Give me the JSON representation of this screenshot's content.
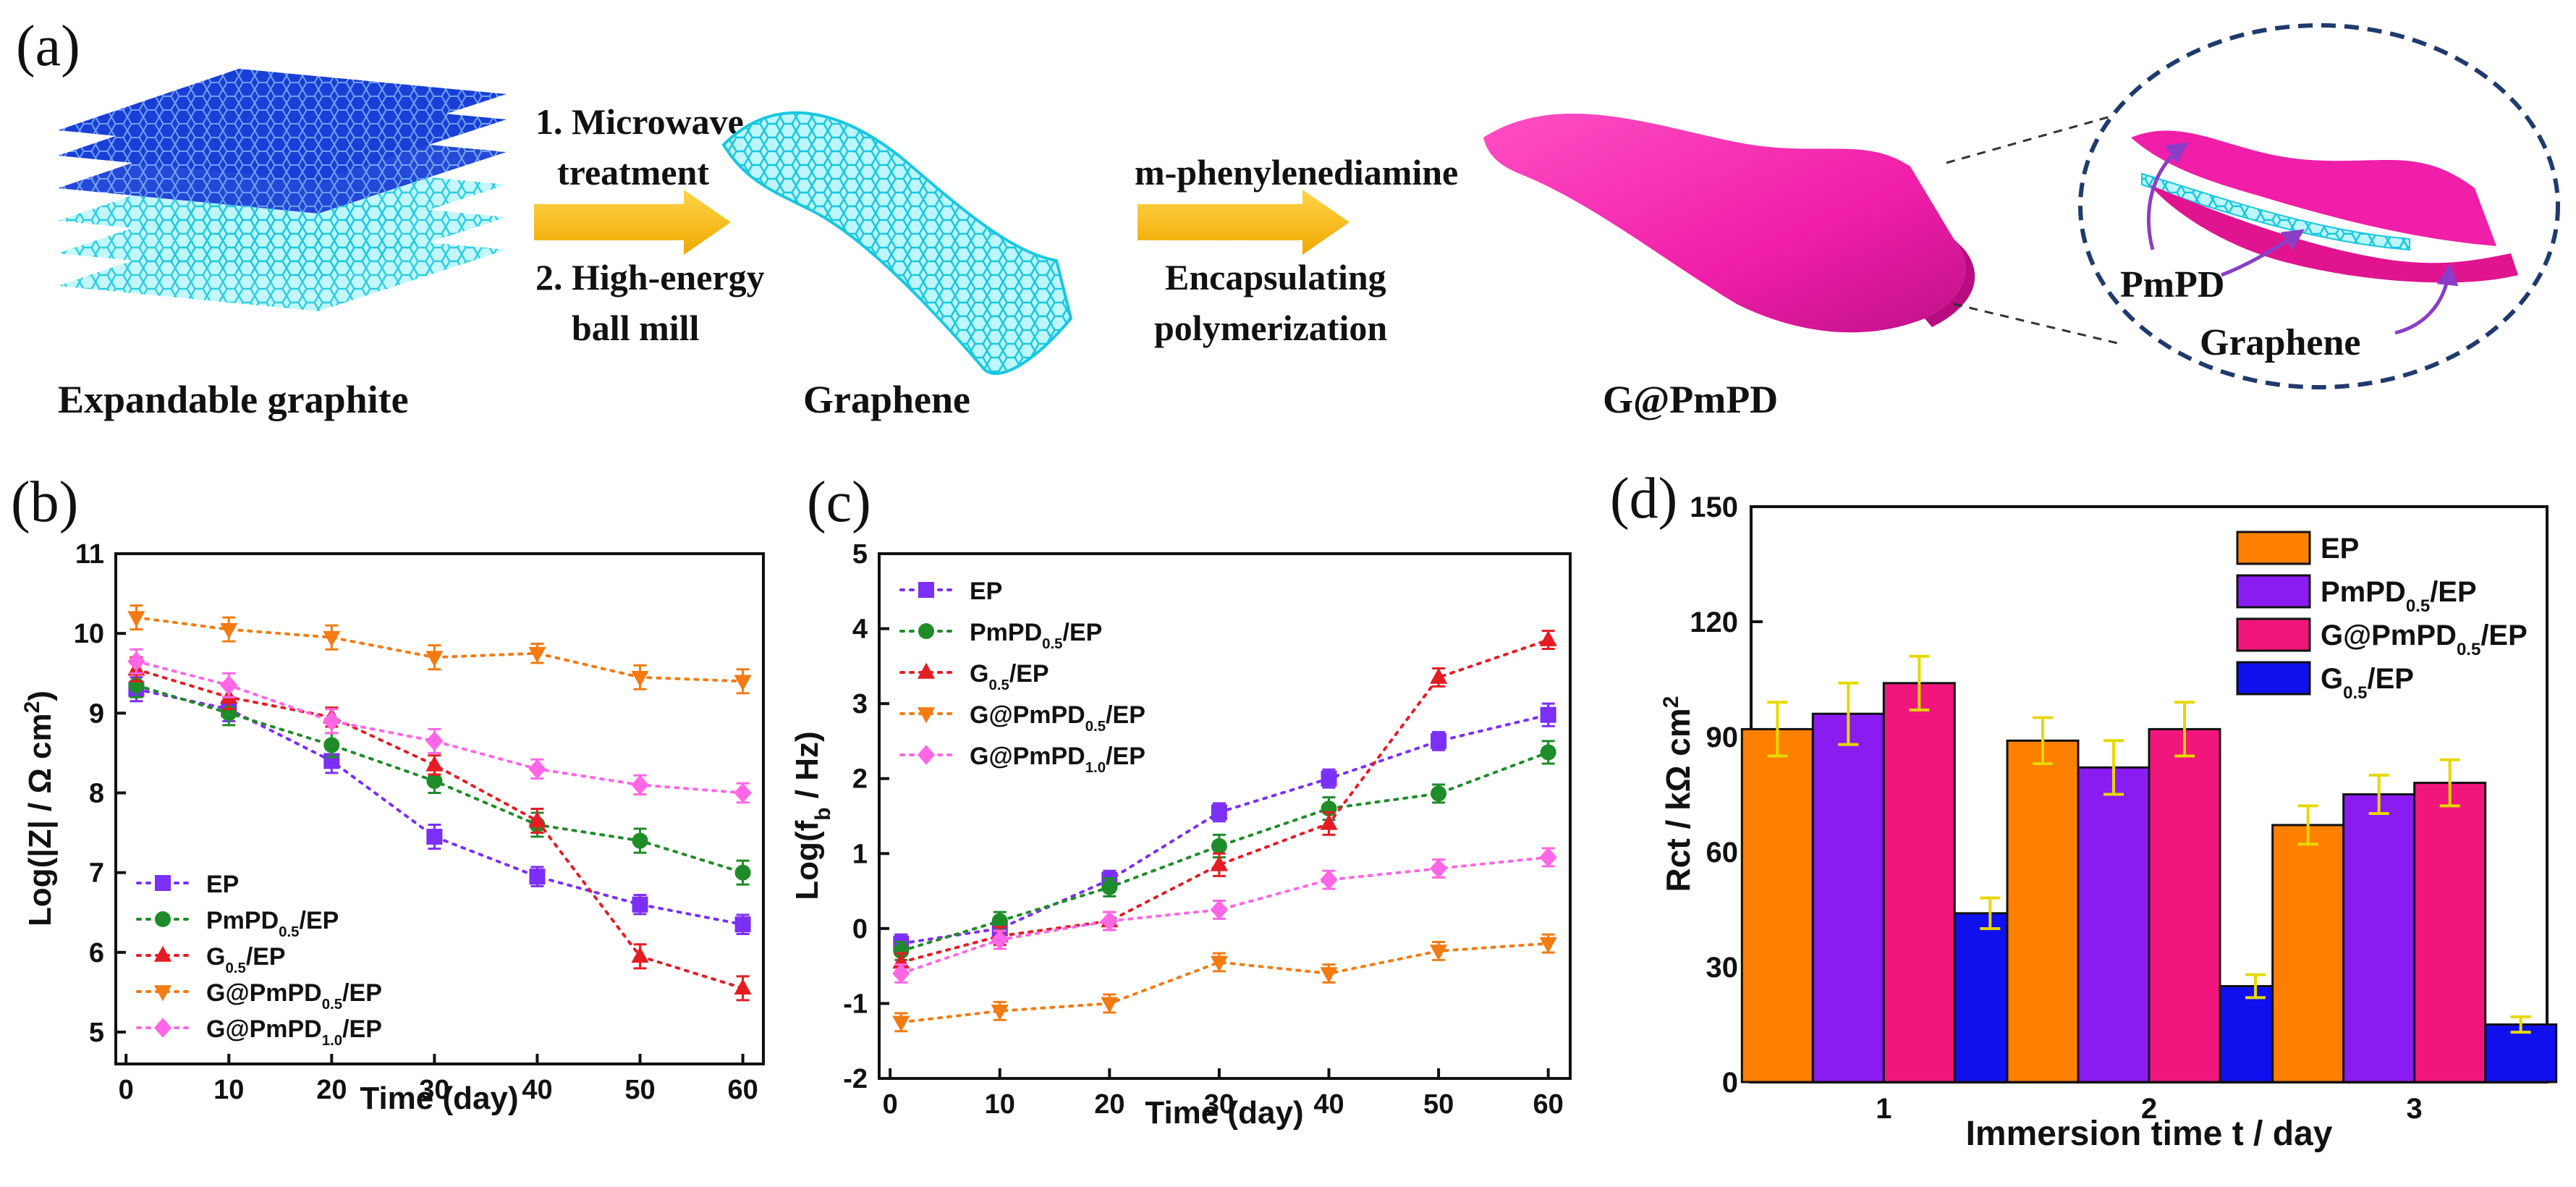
{
  "panel_labels": {
    "a": "(a)",
    "b": "(b)",
    "c": "(c)",
    "d": "(d)"
  },
  "schematic": {
    "step1_line1": "1. Microwave",
    "step1_line2": "treatment",
    "step2_line1": "2. High-energy",
    "step2_line2": "ball mill",
    "reagent": "m-phenylenediamine",
    "process_line1": "Encapsulating",
    "process_line2": "polymerization",
    "label_graphite": "Expandable graphite",
    "label_graphene": "Graphene",
    "label_gpmpd": "G@PmPD",
    "inset_pmpd": "PmPD",
    "inset_graphene": "Graphene",
    "colors": {
      "graphite_dark": "#1a3fd6",
      "graphene": "#2ee6f0",
      "pmpd": "#f01ea8",
      "arrow": "#f5b800",
      "inset_ring": "#1f3a6e"
    }
  },
  "chart_data": [
    {
      "id": "b",
      "type": "line",
      "xlabel": "Time (day)",
      "ylabel_main": "Log(|Z| / Ω cm",
      "ylabel_sup": "2",
      "ylabel_end": ")",
      "xlim": [
        -1,
        62
      ],
      "ylim": [
        4.6,
        11
      ],
      "xticks": [
        "0",
        "10",
        "20",
        "30",
        "40",
        "50",
        "60"
      ],
      "yticks": [
        "5",
        "6",
        "7",
        "8",
        "9",
        "10",
        "11"
      ],
      "x": [
        1,
        10,
        20,
        30,
        40,
        50,
        60
      ],
      "series": [
        {
          "name": "EP",
          "main": "EP",
          "sub": "",
          "tail": "",
          "color": "#7b2ff7",
          "marker": "square",
          "values": [
            9.3,
            9.05,
            8.4,
            7.45,
            6.95,
            6.6,
            6.35
          ],
          "err": [
            0.15,
            0.15,
            0.15,
            0.15,
            0.12,
            0.12,
            0.12
          ]
        },
        {
          "name": "PmPD0.5/EP",
          "main": "PmPD",
          "sub": "0.5",
          "tail": "/EP",
          "color": "#1e8c28",
          "marker": "circle",
          "values": [
            9.35,
            9.0,
            8.6,
            8.15,
            7.6,
            7.4,
            7.0
          ],
          "err": [
            0.15,
            0.15,
            0.15,
            0.15,
            0.15,
            0.15,
            0.15
          ]
        },
        {
          "name": "G0.5/EP",
          "main": "G",
          "sub": "0.5",
          "tail": "/EP",
          "color": "#e51c23",
          "marker": "triangle-up",
          "values": [
            9.55,
            9.2,
            8.95,
            8.35,
            7.65,
            5.95,
            5.55
          ],
          "err": [
            0.15,
            0.15,
            0.12,
            0.12,
            0.15,
            0.15,
            0.15
          ]
        },
        {
          "name": "G@PmPD0.5/EP",
          "main": "G@PmPD",
          "sub": "0.5",
          "tail": "/EP",
          "color": "#f47a12",
          "marker": "triangle-down",
          "values": [
            10.2,
            10.05,
            9.95,
            9.7,
            9.75,
            9.45,
            9.4
          ],
          "err": [
            0.15,
            0.15,
            0.15,
            0.15,
            0.12,
            0.15,
            0.15
          ]
        },
        {
          "name": "G@PmPD1.0/EP",
          "main": "G@PmPD",
          "sub": "1.0",
          "tail": "/EP",
          "color": "#ff66e6",
          "marker": "diamond",
          "values": [
            9.65,
            9.35,
            8.9,
            8.65,
            8.3,
            8.1,
            8.0
          ],
          "err": [
            0.15,
            0.15,
            0.15,
            0.15,
            0.12,
            0.12,
            0.12
          ]
        }
      ]
    },
    {
      "id": "c",
      "type": "line",
      "xlabel": "Time (day)",
      "ylabel_main": "Log(f",
      "ylabel_sub": "b",
      "ylabel_end": " / Hz)",
      "xlim": [
        -1,
        62
      ],
      "ylim": [
        -2,
        5
      ],
      "xticks": [
        "0",
        "10",
        "20",
        "30",
        "40",
        "50",
        "60"
      ],
      "yticks": [
        "-2",
        "-1",
        "0",
        "1",
        "2",
        "3",
        "4",
        "5"
      ],
      "x": [
        1,
        10,
        20,
        30,
        40,
        50,
        60
      ],
      "series": [
        {
          "name": "EP",
          "main": "EP",
          "sub": "",
          "tail": "",
          "color": "#7b2ff7",
          "marker": "square",
          "values": [
            -0.2,
            0.0,
            0.65,
            1.55,
            2.0,
            2.5,
            2.85
          ],
          "err": [
            0.12,
            0.12,
            0.12,
            0.12,
            0.12,
            0.12,
            0.15
          ]
        },
        {
          "name": "PmPD0.5/EP",
          "main": "PmPD",
          "sub": "0.5",
          "tail": "/EP",
          "color": "#1e8c28",
          "marker": "circle",
          "values": [
            -0.3,
            0.1,
            0.55,
            1.1,
            1.6,
            1.8,
            2.35
          ],
          "err": [
            0.12,
            0.12,
            0.12,
            0.15,
            0.15,
            0.12,
            0.15
          ]
        },
        {
          "name": "G0.5/EP",
          "main": "G",
          "sub": "0.5",
          "tail": "/EP",
          "color": "#e51c23",
          "marker": "triangle-up",
          "values": [
            -0.45,
            -0.1,
            0.1,
            0.85,
            1.4,
            3.35,
            3.85
          ],
          "err": [
            0.12,
            0.12,
            0.12,
            0.15,
            0.15,
            0.12,
            0.12
          ]
        },
        {
          "name": "G@PmPD0.5/EP",
          "main": "G@PmPD",
          "sub": "0.5",
          "tail": "/EP",
          "color": "#f47a12",
          "marker": "triangle-down",
          "values": [
            -1.25,
            -1.1,
            -1.0,
            -0.45,
            -0.6,
            -0.3,
            -0.2
          ],
          "err": [
            0.12,
            0.12,
            0.12,
            0.12,
            0.12,
            0.12,
            0.12
          ]
        },
        {
          "name": "G@PmPD1.0/EP",
          "main": "G@PmPD",
          "sub": "1.0",
          "tail": "/EP",
          "color": "#ff66e6",
          "marker": "diamond",
          "values": [
            -0.6,
            -0.15,
            0.1,
            0.25,
            0.65,
            0.8,
            0.95
          ],
          "err": [
            0.12,
            0.12,
            0.12,
            0.12,
            0.12,
            0.12,
            0.12
          ]
        }
      ]
    },
    {
      "id": "d",
      "type": "bar",
      "xlabel": "Immersion time t / day",
      "ylabel_main": "Rct / kΩ cm",
      "ylabel_sup": "2",
      "categories": [
        "1",
        "2",
        "3"
      ],
      "ylim": [
        0,
        150
      ],
      "yticks": [
        "0",
        "30",
        "60",
        "90",
        "120",
        "150"
      ],
      "error_color": "#e6d800",
      "series": [
        {
          "name": "EP",
          "main": "EP",
          "sub": "",
          "tail": "",
          "color": "#ff7f00",
          "values": [
            92,
            89,
            67
          ],
          "err": [
            7,
            6,
            5
          ]
        },
        {
          "name": "PmPD0.5/EP",
          "main": "PmPD",
          "sub": "0.5",
          "tail": "/EP",
          "color": "#8a1cf2",
          "values": [
            96,
            82,
            75
          ],
          "err": [
            8,
            7,
            5
          ]
        },
        {
          "name": "G@PmPD0.5/EP",
          "main": "G@PmPD",
          "sub": "0.5",
          "tail": "/EP",
          "color": "#f0167c",
          "values": [
            104,
            92,
            78
          ],
          "err": [
            7,
            7,
            6
          ]
        },
        {
          "name": "G0.5/EP",
          "main": "G",
          "sub": "0.5",
          "tail": "/EP",
          "color": "#1010ee",
          "values": [
            44,
            25,
            15
          ],
          "err": [
            4,
            3,
            2
          ]
        }
      ]
    }
  ]
}
